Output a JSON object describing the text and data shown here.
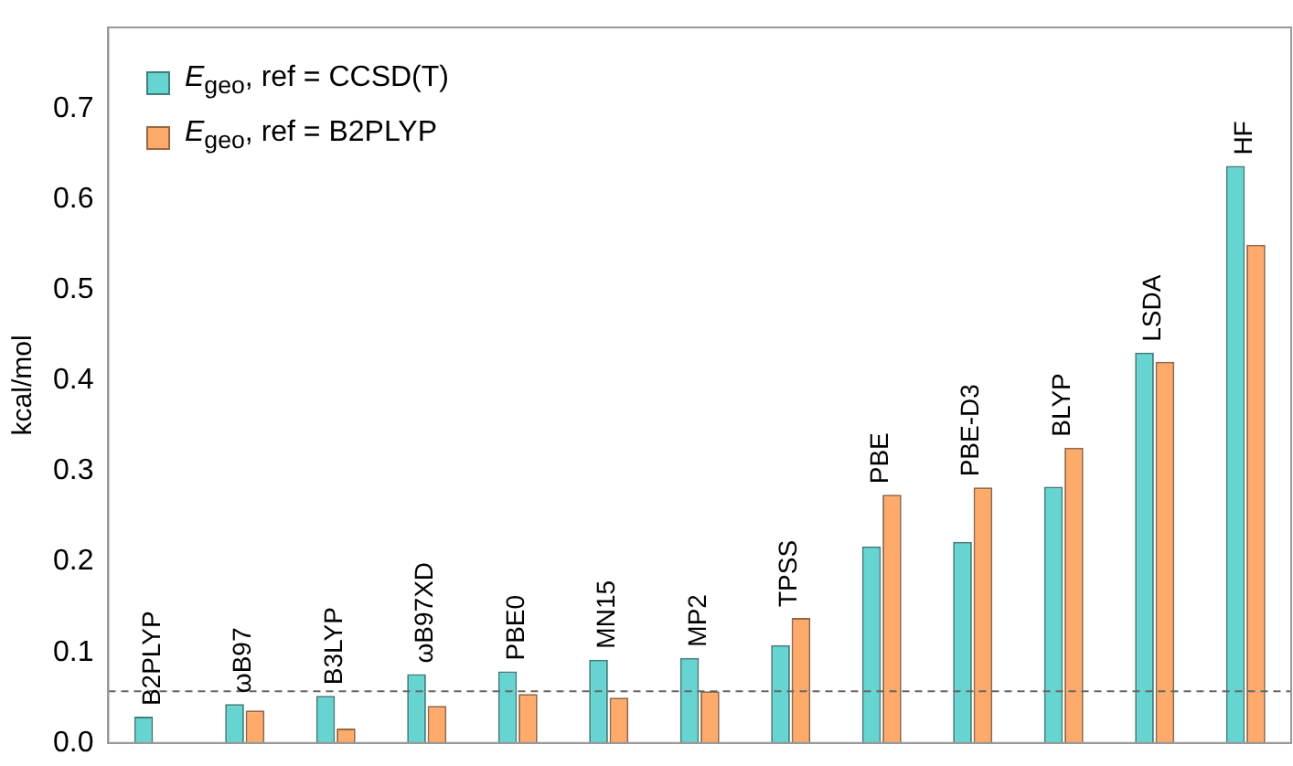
{
  "chart_data": {
    "type": "bar",
    "ylabel": "kcal/mol",
    "categories": [
      "B2PLYP",
      "ωB97",
      "B3LYP",
      "ωB97XD",
      "PBE0",
      "MN15",
      "MP2",
      "TPSS",
      "PBE",
      "PBE-D3",
      "BLYP",
      "LSDA",
      "HF"
    ],
    "series": [
      {
        "name": "E$_{geo}$, ref = CCSD(T)",
        "color": "#66d4d0",
        "values": [
          0.029,
          0.043,
          0.052,
          0.076,
          0.079,
          0.092,
          0.094,
          0.108,
          0.217,
          0.222,
          0.283,
          0.431,
          0.637
        ]
      },
      {
        "name": "E$_{geo}$, ref = B2PLYP",
        "color": "#fdaa6b",
        "values": [
          0.0,
          0.036,
          0.016,
          0.041,
          0.054,
          0.05,
          0.057,
          0.138,
          0.274,
          0.282,
          0.326,
          0.421,
          0.55
        ]
      }
    ],
    "ylim": [
      0,
      0.79
    ],
    "yticks": [
      {
        "value": 0,
        "label": "0.0"
      },
      0.1,
      0.2,
      0.3,
      0.4,
      0.5,
      0.6,
      0.7
    ],
    "tick_labels": "y",
    "grid": false,
    "legend": "top left",
    "ref_lines": [
      {
        "axis": "y",
        "value": 0.057,
        "color": "#666666",
        "line_style": "dashed"
      }
    ]
  }
}
